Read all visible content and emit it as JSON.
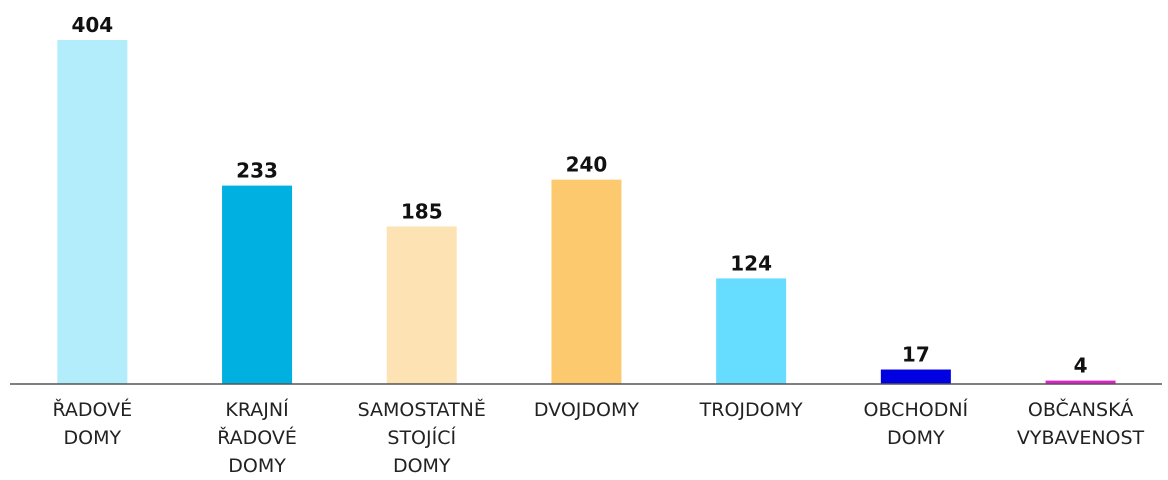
{
  "chart_data": {
    "type": "bar",
    "categories": [
      "ŘADOVÉ\nDOMY",
      "KRAJNÍ\nŘADOVÉ\nDOMY",
      "SAMOSTATNĚ\nSTOJÍCÍ\nDOMY",
      "DVOJDOMY",
      "TROJDOMY",
      "OBCHODNÍ\nDOMY",
      "OBČANSKÁ\nVYBAVENOST"
    ],
    "values": [
      404,
      233,
      185,
      240,
      124,
      17,
      4
    ],
    "colors": [
      "#b3ecfb",
      "#00b0e0",
      "#fde3b4",
      "#fdc96e",
      "#66dcff",
      "#0000e0",
      "#e020c8"
    ]
  }
}
